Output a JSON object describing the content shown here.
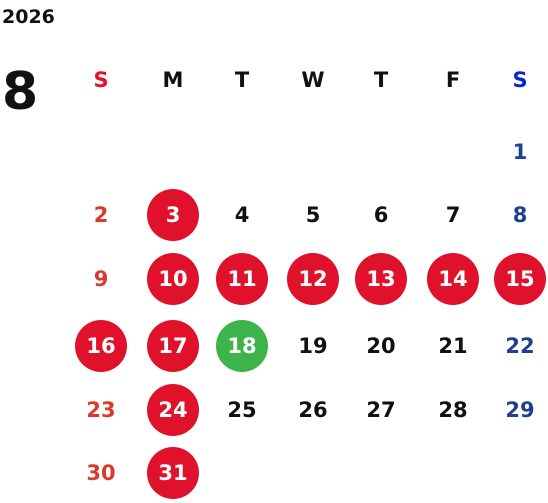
{
  "year": "2026",
  "month": "8",
  "weekdays": [
    {
      "label": "S",
      "color": "#e8102a"
    },
    {
      "label": "M",
      "color": "#111111"
    },
    {
      "label": "T",
      "color": "#111111"
    },
    {
      "label": "W",
      "color": "#111111"
    },
    {
      "label": "T",
      "color": "#111111"
    },
    {
      "label": "F",
      "color": "#111111"
    },
    {
      "label": "S",
      "color": "#0a23d8"
    }
  ],
  "day_colors": [
    "#d93a2b",
    "#111111",
    "#111111",
    "#111111",
    "#111111",
    "#111111",
    "#1f3f8f"
  ],
  "weeks": [
    [
      null,
      null,
      null,
      null,
      null,
      null,
      {
        "day": "1"
      }
    ],
    [
      {
        "day": "2"
      },
      {
        "day": "3",
        "circle": "#e0112b"
      },
      {
        "day": "4"
      },
      {
        "day": "5"
      },
      {
        "day": "6"
      },
      {
        "day": "7"
      },
      {
        "day": "8"
      }
    ],
    [
      {
        "day": "9"
      },
      {
        "day": "10",
        "circle": "#e0112b"
      },
      {
        "day": "11",
        "circle": "#e0112b"
      },
      {
        "day": "12",
        "circle": "#e0112b"
      },
      {
        "day": "13",
        "circle": "#e0112b"
      },
      {
        "day": "14",
        "circle": "#e0112b"
      },
      {
        "day": "15",
        "circle": "#e0112b"
      }
    ],
    [
      {
        "day": "16",
        "circle": "#e0112b"
      },
      {
        "day": "17",
        "circle": "#e0112b"
      },
      {
        "day": "18",
        "circle": "#3cb44a"
      },
      {
        "day": "19"
      },
      {
        "day": "20"
      },
      {
        "day": "21"
      },
      {
        "day": "22"
      }
    ],
    [
      {
        "day": "23"
      },
      {
        "day": "24",
        "circle": "#e0112b"
      },
      {
        "day": "25"
      },
      {
        "day": "26"
      },
      {
        "day": "27"
      },
      {
        "day": "28"
      },
      {
        "day": "29"
      }
    ],
    [
      {
        "day": "30"
      },
      {
        "day": "31",
        "circle": "#e0112b"
      },
      null,
      null,
      null,
      null,
      null
    ]
  ]
}
